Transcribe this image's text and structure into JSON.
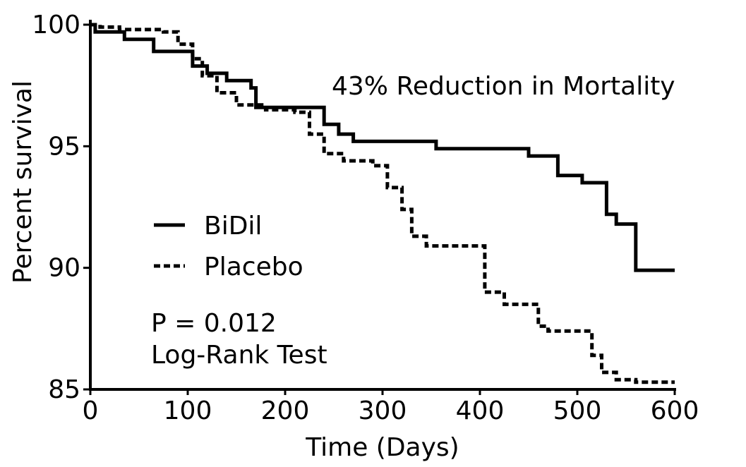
{
  "chart_data": {
    "type": "line",
    "title": "",
    "xlabel": "Time (Days)",
    "ylabel": "Percent survival",
    "xlim": [
      0,
      600
    ],
    "ylim": [
      85,
      100
    ],
    "xticks": [
      "0",
      "100",
      "200",
      "300",
      "400",
      "500",
      "600"
    ],
    "yticks": [
      "85",
      "90",
      "95",
      "100"
    ],
    "grid": false,
    "legend_position": "center-left",
    "series": [
      {
        "name": "BiDil",
        "line_style": "solid",
        "color": "#000000",
        "x": [
          0,
          5,
          20,
          35,
          60,
          65,
          95,
          105,
          120,
          140,
          165,
          170,
          230,
          240,
          255,
          270,
          320,
          355,
          415,
          450,
          480,
          505,
          530,
          540,
          560,
          600
        ],
        "y": [
          100,
          99.7,
          99.7,
          99.4,
          99.4,
          98.9,
          98.9,
          98.3,
          98.0,
          97.7,
          97.4,
          96.6,
          96.6,
          95.9,
          95.5,
          95.2,
          95.2,
          94.9,
          94.9,
          94.6,
          93.8,
          93.5,
          92.2,
          91.8,
          89.9,
          89.9
        ]
      },
      {
        "name": "Placebo",
        "line_style": "dashed",
        "color": "#000000",
        "x": [
          0,
          10,
          30,
          55,
          75,
          90,
          105,
          115,
          130,
          150,
          180,
          210,
          225,
          240,
          260,
          290,
          305,
          320,
          330,
          345,
          385,
          405,
          425,
          460,
          470,
          500,
          515,
          525,
          540,
          560,
          600
        ],
        "y": [
          100,
          99.9,
          99.8,
          99.8,
          99.7,
          99.2,
          98.6,
          97.9,
          97.2,
          96.7,
          96.5,
          96.4,
          95.5,
          94.7,
          94.4,
          94.2,
          93.3,
          92.4,
          91.3,
          90.9,
          90.9,
          89.0,
          88.5,
          87.6,
          87.4,
          87.4,
          86.4,
          85.7,
          85.4,
          85.3,
          85.3
        ]
      }
    ],
    "annotations": {
      "reduction": "43% Reduction in Mortality",
      "p_value": "P = 0.012",
      "test": "Log-Rank Test"
    }
  }
}
